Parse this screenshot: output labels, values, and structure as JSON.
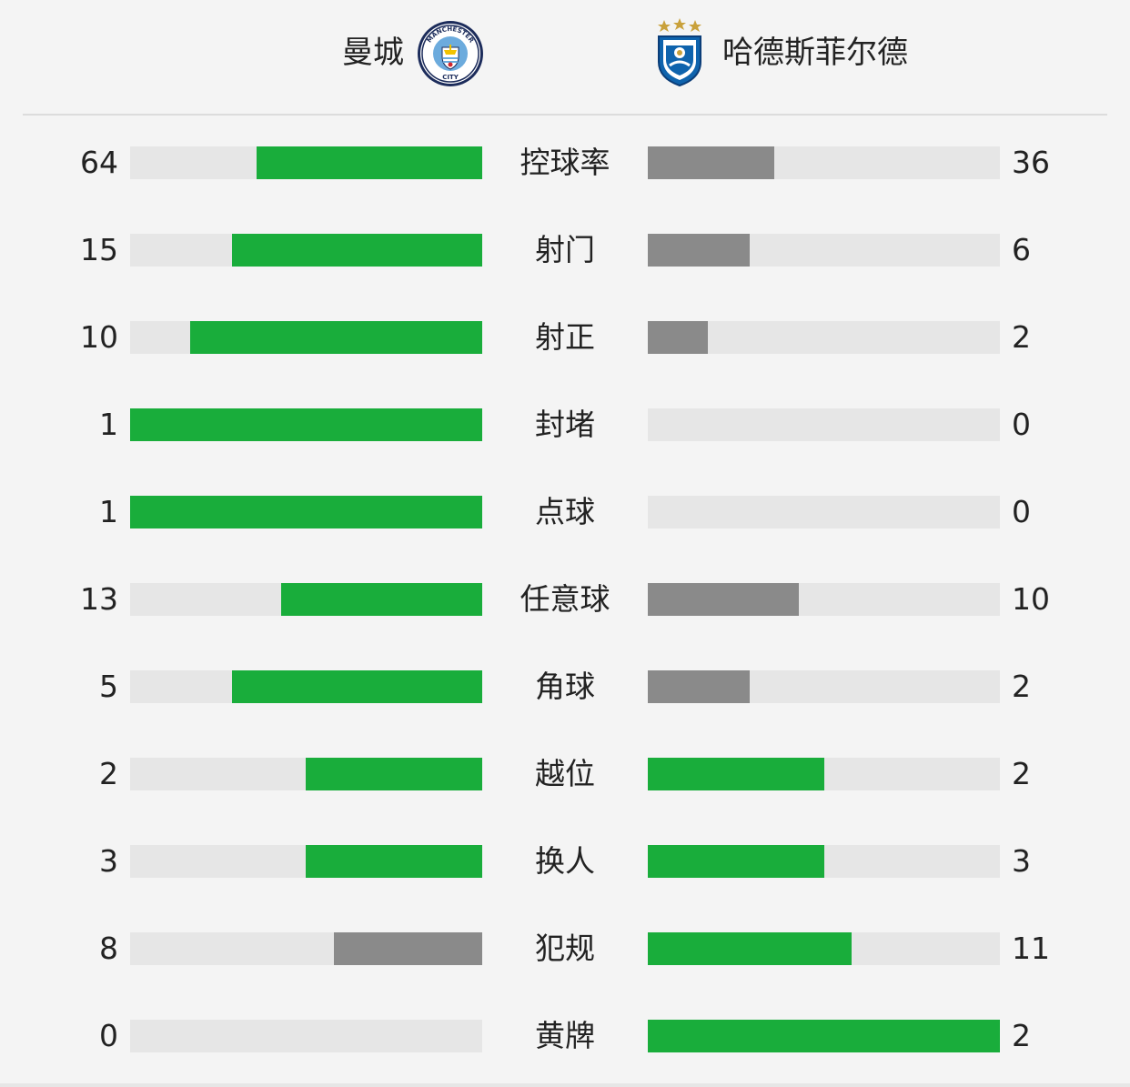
{
  "home": {
    "name": "曼城",
    "crest_icon": "manchester-city-crest-icon",
    "crest_text": "MANCHESTER CITY"
  },
  "away": {
    "name": "哈德斯菲尔德",
    "crest_icon": "huddersfield-town-crest-icon"
  },
  "colors": {
    "leader": "#19ad3b",
    "trailer": "#8a8a8a",
    "track": "#e6e6e6",
    "background": "#f4f4f4"
  },
  "stats": [
    {
      "label": "控球率",
      "home": "64",
      "away": "36",
      "home_fill": 0.64,
      "away_fill": 0.36,
      "home_color": "leader",
      "away_color": "trailer"
    },
    {
      "label": "射门",
      "home": "15",
      "away": "6",
      "home_fill": 0.71,
      "away_fill": 0.29,
      "home_color": "leader",
      "away_color": "trailer"
    },
    {
      "label": "射正",
      "home": "10",
      "away": "2",
      "home_fill": 0.83,
      "away_fill": 0.17,
      "home_color": "leader",
      "away_color": "trailer"
    },
    {
      "label": "封堵",
      "home": "1",
      "away": "0",
      "home_fill": 1.0,
      "away_fill": 0.0,
      "home_color": "leader",
      "away_color": "trailer"
    },
    {
      "label": "点球",
      "home": "1",
      "away": "0",
      "home_fill": 1.0,
      "away_fill": 0.0,
      "home_color": "leader",
      "away_color": "trailer"
    },
    {
      "label": "任意球",
      "home": "13",
      "away": "10",
      "home_fill": 0.57,
      "away_fill": 0.43,
      "home_color": "leader",
      "away_color": "trailer"
    },
    {
      "label": "角球",
      "home": "5",
      "away": "2",
      "home_fill": 0.71,
      "away_fill": 0.29,
      "home_color": "leader",
      "away_color": "trailer"
    },
    {
      "label": "越位",
      "home": "2",
      "away": "2",
      "home_fill": 0.5,
      "away_fill": 0.5,
      "home_color": "leader",
      "away_color": "leader"
    },
    {
      "label": "换人",
      "home": "3",
      "away": "3",
      "home_fill": 0.5,
      "away_fill": 0.5,
      "home_color": "leader",
      "away_color": "leader"
    },
    {
      "label": "犯规",
      "home": "8",
      "away": "11",
      "home_fill": 0.42,
      "away_fill": 0.58,
      "home_color": "trailer",
      "away_color": "leader"
    },
    {
      "label": "黄牌",
      "home": "0",
      "away": "2",
      "home_fill": 0.0,
      "away_fill": 1.0,
      "home_color": "trailer",
      "away_color": "leader"
    }
  ]
}
